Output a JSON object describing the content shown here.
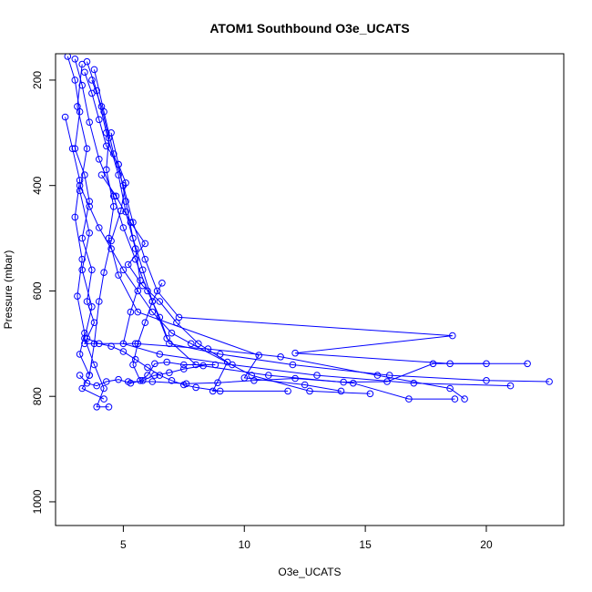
{
  "chart_data": {
    "type": "scatter",
    "title": "ATOM1 Southbound O3e_UCATS",
    "xlabel": "O3e_UCATS",
    "ylabel": "Pressure (mbar)",
    "xlim": [
      2.2,
      23.2
    ],
    "ylim": [
      1045,
      150
    ],
    "y_reversed": true,
    "grid": false,
    "legend": "none",
    "marker": "open-circle",
    "connected_lines": true,
    "xticks": [
      5,
      10,
      15,
      20
    ],
    "yticks": [
      200,
      400,
      600,
      800,
      1000
    ],
    "colors": {
      "series": "#0000ff",
      "axis": "#000000"
    },
    "series": [
      {
        "points": [
          [
            2.7,
            155
          ],
          [
            3.0,
            200
          ],
          [
            3.2,
            260
          ],
          [
            3.0,
            330
          ],
          [
            3.4,
            380
          ],
          [
            3.6,
            430
          ],
          [
            3.3,
            500
          ],
          [
            3.7,
            560
          ],
          [
            3.5,
            620
          ],
          [
            3.8,
            660
          ],
          [
            3.4,
            700
          ],
          [
            5.5,
            700
          ],
          [
            8.5,
            710
          ],
          [
            11.5,
            725
          ],
          [
            15.5,
            760
          ],
          [
            18.5,
            785
          ],
          [
            19.1,
            805
          ]
        ]
      },
      {
        "points": [
          [
            3.0,
            160
          ],
          [
            3.3,
            210
          ],
          [
            3.6,
            280
          ],
          [
            4.0,
            350
          ],
          [
            4.6,
            420
          ],
          [
            5.0,
            480
          ],
          [
            5.5,
            540
          ],
          [
            6.0,
            600
          ],
          [
            6.5,
            650
          ],
          [
            6.9,
            700
          ],
          [
            9.0,
            720
          ],
          [
            12.0,
            740
          ],
          [
            16.0,
            760
          ],
          [
            20.0,
            770
          ],
          [
            22.6,
            772
          ]
        ]
      },
      {
        "points": [
          [
            3.5,
            165
          ],
          [
            3.9,
            220
          ],
          [
            4.3,
            300
          ],
          [
            4.8,
            380
          ],
          [
            5.1,
            450
          ],
          [
            5.5,
            520
          ],
          [
            5.7,
            580
          ],
          [
            5.3,
            640
          ],
          [
            5.0,
            700
          ],
          [
            6.5,
            720
          ],
          [
            9.5,
            740
          ],
          [
            13.0,
            760
          ],
          [
            17.0,
            775
          ],
          [
            21.0,
            780
          ]
        ]
      },
      {
        "points": [
          [
            3.3,
            170
          ],
          [
            3.1,
            250
          ],
          [
            3.5,
            330
          ],
          [
            3.2,
            410
          ],
          [
            3.6,
            490
          ],
          [
            3.3,
            560
          ],
          [
            3.7,
            630
          ],
          [
            3.4,
            690
          ],
          [
            3.8,
            740
          ],
          [
            4.2,
            785
          ],
          [
            3.9,
            820
          ],
          [
            4.4,
            820
          ]
        ]
      },
      {
        "points": [
          [
            3.8,
            180
          ],
          [
            4.2,
            260
          ],
          [
            4.6,
            340
          ],
          [
            5.0,
            400
          ],
          [
            5.4,
            470
          ],
          [
            5.9,
            540
          ],
          [
            6.4,
            600
          ],
          [
            7.3,
            650
          ],
          [
            18.6,
            685
          ],
          [
            12.1,
            718
          ],
          [
            18.5,
            738
          ],
          [
            21.7,
            738
          ]
        ]
      },
      {
        "points": [
          [
            2.6,
            270
          ],
          [
            2.9,
            330
          ],
          [
            3.2,
            390
          ],
          [
            3.0,
            460
          ],
          [
            3.3,
            540
          ],
          [
            3.1,
            610
          ],
          [
            3.4,
            680
          ],
          [
            3.2,
            720
          ],
          [
            3.6,
            760
          ],
          [
            3.3,
            785
          ],
          [
            4.2,
            805
          ]
        ]
      },
      {
        "points": [
          [
            4.5,
            300
          ],
          [
            4.8,
            360
          ],
          [
            5.1,
            430
          ],
          [
            5.4,
            500
          ],
          [
            5.8,
            560
          ],
          [
            6.2,
            620
          ],
          [
            6.8,
            690
          ],
          [
            8.0,
            740
          ],
          [
            11.0,
            760
          ],
          [
            14.5,
            775
          ],
          [
            16.8,
            805
          ],
          [
            18.7,
            805
          ]
        ]
      },
      {
        "points": [
          [
            3.7,
            200
          ],
          [
            4.1,
            250
          ],
          [
            4.4,
            310
          ],
          [
            4.3,
            370
          ],
          [
            4.6,
            440
          ],
          [
            4.4,
            500
          ],
          [
            4.8,
            570
          ],
          [
            5.6,
            640
          ],
          [
            10.6,
            722
          ],
          [
            10.0,
            765
          ],
          [
            12.5,
            778
          ],
          [
            14.0,
            790
          ]
        ]
      },
      {
        "points": [
          [
            3.2,
            400
          ],
          [
            3.6,
            440
          ],
          [
            4.0,
            480
          ],
          [
            4.5,
            520
          ],
          [
            5.0,
            560
          ],
          [
            5.6,
            600
          ],
          [
            6.2,
            640
          ],
          [
            7.0,
            680
          ],
          [
            7.8,
            700
          ],
          [
            10.3,
            760
          ],
          [
            12.7,
            790
          ],
          [
            15.2,
            795
          ]
        ]
      },
      {
        "points": [
          [
            4.1,
            380
          ],
          [
            4.7,
            420
          ],
          [
            5.3,
            470
          ],
          [
            5.9,
            510
          ],
          [
            5.2,
            550
          ],
          [
            5.8,
            590
          ],
          [
            6.5,
            620
          ],
          [
            7.2,
            660
          ],
          [
            8.1,
            700
          ],
          [
            9.3,
            735
          ],
          [
            8.7,
            790
          ],
          [
            11.8,
            790
          ]
        ]
      },
      {
        "points": [
          [
            3.5,
            690
          ],
          [
            4.0,
            700
          ],
          [
            4.5,
            705
          ],
          [
            5.0,
            715
          ],
          [
            5.5,
            730
          ],
          [
            6.0,
            745
          ],
          [
            6.5,
            760
          ],
          [
            7.0,
            770
          ],
          [
            7.5,
            778
          ],
          [
            8.0,
            783
          ],
          [
            9.0,
            790
          ]
        ]
      },
      {
        "points": [
          [
            3.2,
            760
          ],
          [
            3.5,
            775
          ],
          [
            3.9,
            780
          ],
          [
            4.3,
            772
          ],
          [
            4.8,
            768
          ],
          [
            5.3,
            775
          ],
          [
            5.8,
            770
          ],
          [
            6.3,
            760
          ],
          [
            6.9,
            755
          ],
          [
            7.5,
            748
          ],
          [
            8.3,
            742
          ]
        ]
      },
      {
        "points": [
          [
            6.6,
            585
          ],
          [
            6.2,
            620
          ],
          [
            5.9,
            660
          ],
          [
            5.6,
            700
          ],
          [
            5.4,
            740
          ],
          [
            5.7,
            770
          ],
          [
            6.0,
            760
          ],
          [
            6.3,
            738
          ],
          [
            6.8,
            735
          ],
          [
            7.5,
            740
          ],
          [
            8.8,
            740
          ]
        ]
      },
      {
        "points": [
          [
            3.4,
            185
          ],
          [
            3.7,
            225
          ],
          [
            4.0,
            275
          ],
          [
            4.3,
            325
          ],
          [
            4.8,
            360
          ],
          [
            5.1,
            395
          ],
          [
            4.9,
            448
          ],
          [
            4.5,
            505
          ],
          [
            4.2,
            565
          ],
          [
            4.0,
            620
          ],
          [
            3.8,
            700
          ],
          [
            3.6,
            760
          ]
        ]
      },
      {
        "points": [
          [
            20.0,
            738
          ],
          [
            17.8,
            738
          ],
          [
            15.9,
            772
          ],
          [
            14.1,
            773
          ],
          [
            12.1,
            766
          ],
          [
            10.4,
            770
          ],
          [
            8.9,
            774
          ],
          [
            7.6,
            776
          ],
          [
            6.2,
            772
          ],
          [
            5.2,
            772
          ]
        ]
      }
    ]
  }
}
